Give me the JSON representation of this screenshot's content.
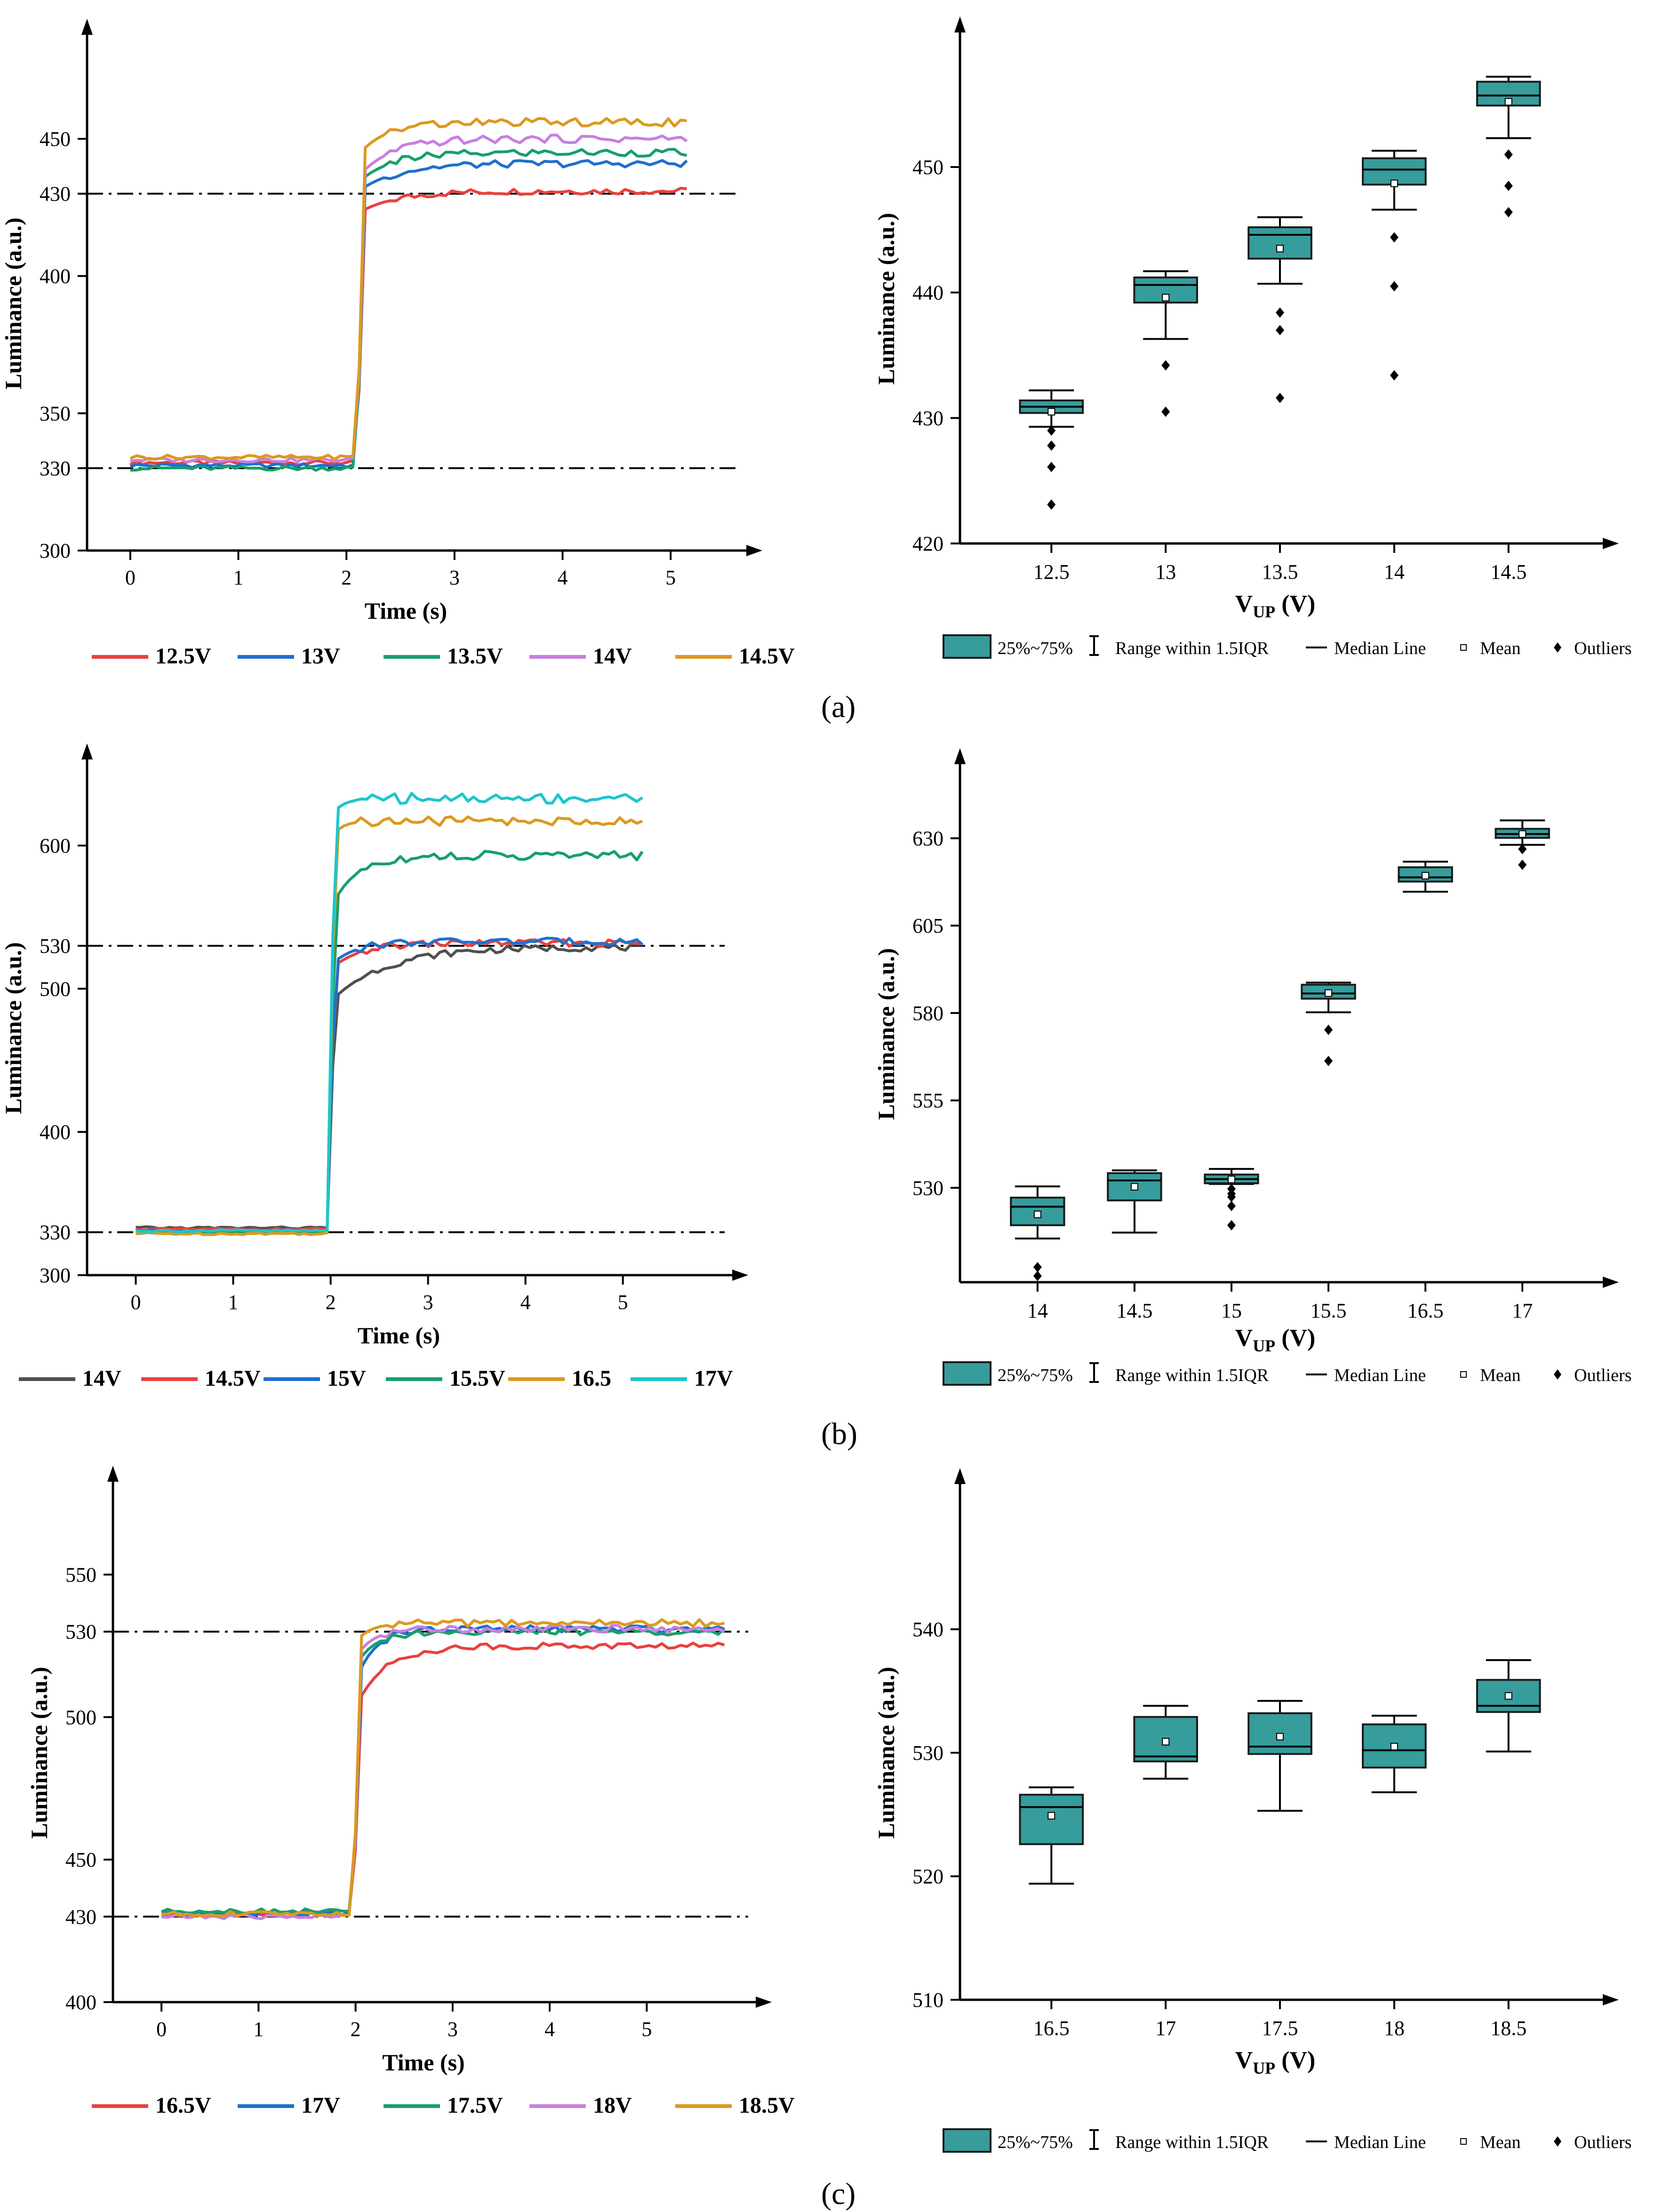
{
  "colors": {
    "box_fill": "#369C9C",
    "box_stroke": "#1a1a1a",
    "axis": "#000000",
    "line_12_5": "#E8413E",
    "line_13": "#1F6FD0",
    "line_13_5": "#16A06A",
    "line_14": "#C77FE0",
    "line_14_5": "#DB9A1E",
    "line_14_gray": "#505050",
    "line_17_cyan": "#1CC6CC"
  },
  "panels": [
    {
      "label": "(a)"
    },
    {
      "label": "(b)"
    },
    {
      "label": "(c)"
    }
  ],
  "chart_data": [
    {
      "id": "a-line",
      "type": "line",
      "title": "",
      "xlabel": "Time (s)",
      "ylabel": "Luminance (a.u.)",
      "xlim": [
        -0.4,
        5.5
      ],
      "ylim": [
        300,
        480
      ],
      "xticks": [
        0,
        1,
        2,
        3,
        4,
        5
      ],
      "yticks": [
        300,
        330,
        350,
        400,
        430,
        450
      ],
      "reference_lines": [
        330,
        430
      ],
      "t_rise": 2.1,
      "t_end": 5.15,
      "series": [
        {
          "name": "12.5V",
          "color": "#E8413E",
          "base": 332,
          "final": 431,
          "jump": 0.93,
          "tau": 0.35
        },
        {
          "name": "13V",
          "color": "#1F6FD0",
          "base": 331,
          "final": 441,
          "jump": 0.92,
          "tau": 0.35
        },
        {
          "name": "13.5V",
          "color": "#16A06A",
          "base": 330,
          "final": 445,
          "jump": 0.92,
          "tau": 0.3
        },
        {
          "name": "14V",
          "color": "#C77FE0",
          "base": 333,
          "final": 450,
          "jump": 0.9,
          "tau": 0.3
        },
        {
          "name": "14.5V",
          "color": "#DB9A1E",
          "base": 334,
          "final": 456,
          "jump": 0.92,
          "tau": 0.25
        }
      ]
    },
    {
      "id": "a-box",
      "type": "box",
      "xlabel": "V_UP (V)",
      "ylabel": "Luminance (a.u.)",
      "ylim": [
        420,
        459
      ],
      "yticks": [
        420,
        430,
        440,
        450
      ],
      "categories": [
        "12.5",
        "13",
        "13.5",
        "14",
        "14.5"
      ],
      "boxes": [
        {
          "q1": 430.4,
          "q3": 431.4,
          "median": 430.9,
          "mean": 430.5,
          "whisker_low": 429.3,
          "whisker_high": 432.2,
          "outliers": [
            429,
            427.8,
            426.1,
            423.1
          ]
        },
        {
          "q1": 439.2,
          "q3": 441.2,
          "median": 440.6,
          "mean": 439.6,
          "whisker_low": 436.3,
          "whisker_high": 441.7,
          "outliers": [
            434.2,
            430.5
          ]
        },
        {
          "q1": 442.7,
          "q3": 445.2,
          "median": 444.6,
          "mean": 443.5,
          "whisker_low": 440.7,
          "whisker_high": 446,
          "outliers": [
            438.4,
            437,
            431.6
          ]
        },
        {
          "q1": 448.6,
          "q3": 450.7,
          "median": 449.8,
          "mean": 448.7,
          "whisker_low": 446.6,
          "whisker_high": 451.3,
          "outliers": [
            444.4,
            440.5,
            433.4
          ]
        },
        {
          "q1": 454.9,
          "q3": 456.8,
          "median": 455.7,
          "mean": 455.2,
          "whisker_low": 452.3,
          "whisker_high": 457.2,
          "outliers": [
            451,
            448.5,
            446.4
          ]
        }
      ]
    },
    {
      "id": "b-line",
      "type": "line",
      "xlabel": "Time (s)",
      "ylabel": "Luminance (a.u.)",
      "xlim": [
        -0.5,
        5.9
      ],
      "ylim": [
        300,
        645
      ],
      "xticks": [
        0,
        1,
        2,
        3,
        4,
        5
      ],
      "yticks": [
        300,
        330,
        400,
        500,
        530,
        600
      ],
      "reference_lines": [
        330,
        530
      ],
      "t_rise": 1.98,
      "t_end": 5.2,
      "series": [
        {
          "name": "14V",
          "color": "#505050",
          "base": 333,
          "final": 529,
          "jump": 0.82,
          "tau": 0.55
        },
        {
          "name": "14.5V",
          "color": "#E8413E",
          "base": 332,
          "final": 532,
          "jump": 0.92,
          "tau": 0.3
        },
        {
          "name": "15V",
          "color": "#1F6FD0",
          "base": 331,
          "final": 533,
          "jump": 0.93,
          "tau": 0.25
        },
        {
          "name": "15.5V",
          "color": "#16A06A",
          "base": 330,
          "final": 593,
          "jump": 0.88,
          "tau": 0.25
        },
        {
          "name": "16.5",
          "color": "#DB9A1E",
          "base": 329,
          "final": 617,
          "jump": 0.97,
          "tau": 0.1
        },
        {
          "name": "17V",
          "color": "#1CC6CC",
          "base": 331,
          "final": 633,
          "jump": 0.97,
          "tau": 0.12
        }
      ]
    },
    {
      "id": "b-box",
      "type": "box",
      "xlabel": "V_UP (V)",
      "ylabel": "Luminance (a.u.)",
      "ylim": [
        503,
        645
      ],
      "yticks": [
        530,
        555,
        580,
        605,
        630
      ],
      "categories": [
        "14",
        "14.5",
        "15",
        "15.5",
        "16.5",
        "17"
      ],
      "boxes": [
        {
          "q1": 519.3,
          "q3": 527.2,
          "median": 524.6,
          "mean": 522.4,
          "whisker_low": 515.5,
          "whisker_high": 530.4,
          "outliers": [
            507.3,
            504.8
          ]
        },
        {
          "q1": 526.4,
          "q3": 534.2,
          "median": 532.1,
          "mean": 530.3,
          "whisker_low": 517.2,
          "whisker_high": 535
        },
        {
          "q1": 531.3,
          "q3": 533.8,
          "median": 532.5,
          "mean": 532.4,
          "whisker_low": 531.1,
          "whisker_high": 535.4,
          "outliers": [
            529.7,
            527.4,
            524.8,
            519.3,
            528.3
          ]
        },
        {
          "q1": 584.1,
          "q3": 588.1,
          "median": 585.6,
          "mean": 585.7,
          "whisker_low": 580.2,
          "whisker_high": 588.7,
          "outliers": [
            575.2,
            566.3
          ]
        },
        {
          "q1": 617.6,
          "q3": 621.7,
          "median": 618.8,
          "mean": 619.3,
          "whisker_low": 614.7,
          "whisker_high": 623.3
        },
        {
          "q1": 630.1,
          "q3": 632.7,
          "median": 631.2,
          "mean": 631.2,
          "whisker_low": 628.1,
          "whisker_high": 635.1,
          "outliers": [
            626.9,
            622.4
          ]
        }
      ]
    },
    {
      "id": "c-line",
      "type": "line",
      "xlabel": "Time (s)",
      "ylabel": "Luminance (a.u.)",
      "xlim": [
        -0.5,
        5.9
      ],
      "ylim": [
        400,
        575
      ],
      "xticks": [
        0,
        1,
        2,
        3,
        4,
        5
      ],
      "yticks": [
        400,
        430,
        450,
        500,
        530,
        550
      ],
      "reference_lines": [
        430,
        530
      ],
      "t_rise": 1.98,
      "t_end": 5.8,
      "series": [
        {
          "name": "16.5V",
          "color": "#E8413E",
          "base": 431,
          "final": 525,
          "jump": 0.8,
          "tau": 0.3
        },
        {
          "name": "17V",
          "color": "#1F6FD0",
          "base": 431,
          "final": 531,
          "jump": 0.85,
          "tau": 0.2
        },
        {
          "name": "17.5V",
          "color": "#16A06A",
          "base": 432,
          "final": 530,
          "jump": 0.9,
          "tau": 0.2
        },
        {
          "name": "18V",
          "color": "#C77FE0",
          "base": 430,
          "final": 531,
          "jump": 0.92,
          "tau": 0.18
        },
        {
          "name": "18.5V",
          "color": "#DB9A1E",
          "base": 431,
          "final": 533,
          "jump": 0.95,
          "tau": 0.15
        }
      ]
    },
    {
      "id": "c-box",
      "type": "box",
      "xlabel": "V_UP (V)",
      "ylabel": "Luminance (a.u.)",
      "ylim": [
        510,
        550
      ],
      "yticks": [
        510,
        520,
        530,
        540
      ],
      "categories": [
        "16.5",
        "17",
        "17.5",
        "18",
        "18.5"
      ],
      "boxes": [
        {
          "q1": 522.6,
          "q3": 526.6,
          "median": 525.6,
          "mean": 524.9,
          "whisker_low": 519.4,
          "whisker_high": 527.2
        },
        {
          "q1": 529.3,
          "q3": 532.9,
          "median": 529.7,
          "mean": 530.9,
          "whisker_low": 527.9,
          "whisker_high": 533.8
        },
        {
          "q1": 529.9,
          "q3": 533.2,
          "median": 530.5,
          "mean": 531.3,
          "whisker_low": 525.3,
          "whisker_high": 534.2
        },
        {
          "q1": 528.8,
          "q3": 532.3,
          "median": 530.2,
          "mean": 530.5,
          "whisker_low": 526.8,
          "whisker_high": 533
        },
        {
          "q1": 533.3,
          "q3": 535.9,
          "median": 533.8,
          "mean": 534.6,
          "whisker_low": 530.1,
          "whisker_high": 537.5
        }
      ]
    }
  ],
  "box_legend": {
    "box": "25%~75%",
    "range": "Range within 1.5IQR",
    "median": "Median Line",
    "mean": "Mean",
    "outliers": "Outliers"
  }
}
